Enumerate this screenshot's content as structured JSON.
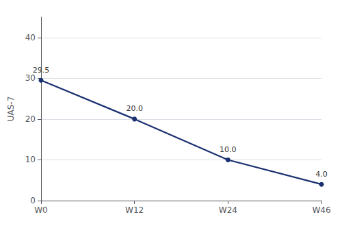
{
  "chart_data": {
    "type": "line",
    "categories": [
      "W0",
      "W12",
      "W24",
      "W46"
    ],
    "values": [
      29.5,
      20.0,
      10.0,
      4.0
    ],
    "value_labels": [
      "29.5",
      "20.0",
      "10.0",
      "4.0"
    ],
    "color": "#1a3070",
    "marker": "circle",
    "ylabel": "UAS-7",
    "ylim": [
      0,
      45
    ],
    "yticks": [
      0,
      10,
      20,
      30,
      40
    ],
    "grid": true,
    "data_labels": true
  }
}
